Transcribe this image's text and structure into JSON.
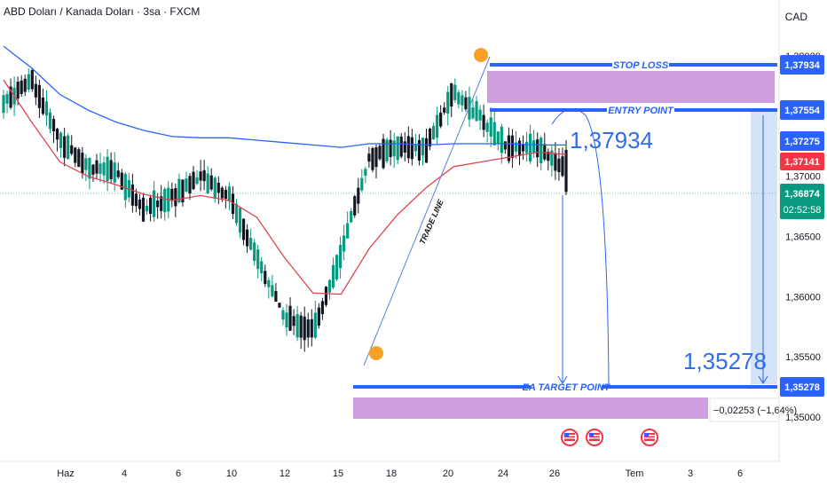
{
  "header": {
    "symbol_title": "ABD Doları / Kanada Doları · 3sa · FXCM",
    "currency": "CAD"
  },
  "colors": {
    "up": "#089981",
    "down": "#131722",
    "ema_fast": "#e0434e",
    "ema_slow": "#2962ff",
    "level_line": "#2962ff",
    "zone": "#c68ed8",
    "projection": "#c9dcf5",
    "circle": "#f7a128",
    "price_tag_blue": "#2962ff",
    "price_tag_red": "#f23645",
    "price_tag_green": "#089981"
  },
  "chart_data": {
    "type": "candlestick",
    "ylim": [
      1.3485,
      1.3805
    ],
    "price_axis_ticks": [
      "1,38000",
      "1,37000",
      "1,36500",
      "1,36000",
      "1,35500",
      "1,35000"
    ],
    "x_tick_labels": [
      "Haz",
      "4",
      "6",
      "10",
      "12",
      "15",
      "18",
      "20",
      "24",
      "26",
      "Tem",
      "3",
      "6"
    ],
    "levels": {
      "stop_loss": {
        "label": "STOP LOSS",
        "value": 1.37934,
        "tag": "1,37934"
      },
      "entry_point": {
        "label": "ENTRY POINT",
        "value": 1.37554,
        "tag": "1,37554"
      },
      "target": {
        "label": "EA TARGET POINT",
        "value": 1.35278,
        "tag": "1,35278"
      }
    },
    "stop_zone": [
      1.376,
      1.3788
    ],
    "target_zone": [
      1.3503,
      1.3518
    ],
    "trade_line_label": "TRADE LINE",
    "annotations": {
      "big_price_upper": "1,37934",
      "big_price_lower": "1,35278",
      "measure_text": "−0,02253 (−1,64%)"
    },
    "price_tags": [
      {
        "value": "1,37275",
        "color": "blue"
      },
      {
        "value": "1,37141",
        "color": "red"
      },
      {
        "value": "1,36874",
        "color": "green",
        "extra": "02:52:58"
      }
    ],
    "current_price": 1.36874,
    "anchors": [
      [
        1.3763,
        1.3761,
        1.3775,
        1.3743
      ],
      [
        1.3795,
        1.3765,
        1.3798,
        1.3752
      ],
      [
        1.3723,
        1.3738,
        1.3745,
        1.3707
      ],
      [
        1.3718,
        1.3698,
        1.373,
        1.369
      ],
      [
        1.37,
        1.3706,
        1.3715,
        1.3675
      ],
      [
        1.3665,
        1.368,
        1.369,
        1.365
      ],
      [
        1.3676,
        1.369,
        1.3708,
        1.3664
      ],
      [
        1.3698,
        1.3702,
        1.3715,
        1.368
      ],
      [
        1.3695,
        1.3675,
        1.3702,
        1.366
      ],
      [
        1.3655,
        1.361,
        1.3665,
        1.36
      ],
      [
        1.36,
        1.3565,
        1.361,
        1.356
      ],
      [
        1.3575,
        1.3568,
        1.3592,
        1.355
      ],
      [
        1.359,
        1.368,
        1.369,
        1.3583
      ],
      [
        1.37,
        1.373,
        1.374,
        1.3692
      ],
      [
        1.3712,
        1.3735,
        1.375,
        1.3705
      ],
      [
        1.371,
        1.3735,
        1.3745,
        1.3703
      ],
      [
        1.376,
        1.378,
        1.3795,
        1.3755
      ],
      [
        1.3755,
        1.374,
        1.376,
        1.3728
      ],
      [
        1.3725,
        1.372,
        1.3735,
        1.3705
      ],
      [
        1.372,
        1.373,
        1.3745,
        1.371
      ],
      [
        1.3722,
        1.3687,
        1.3725,
        1.3682
      ]
    ],
    "ema_fast": [
      [
        1.378,
        1.3745,
        1.3712,
        1.37,
        1.3693,
        1.3685,
        1.368,
        1.3684,
        1.368,
        1.3666,
        1.3632,
        1.3603,
        1.3602,
        1.364,
        1.3668,
        1.369,
        1.3708,
        1.3712,
        1.3716,
        1.372,
        1.3718
      ]
    ],
    "ema_slow": [
      [
        1.3808,
        1.379,
        1.3768,
        1.3755,
        1.3745,
        1.3738,
        1.3733,
        1.3732,
        1.3732,
        1.373,
        1.3728,
        1.3726,
        1.3724,
        1.3727,
        1.3727,
        1.3726,
        1.3727,
        1.3727,
        1.3727,
        1.3726,
        1.3726
      ]
    ]
  }
}
